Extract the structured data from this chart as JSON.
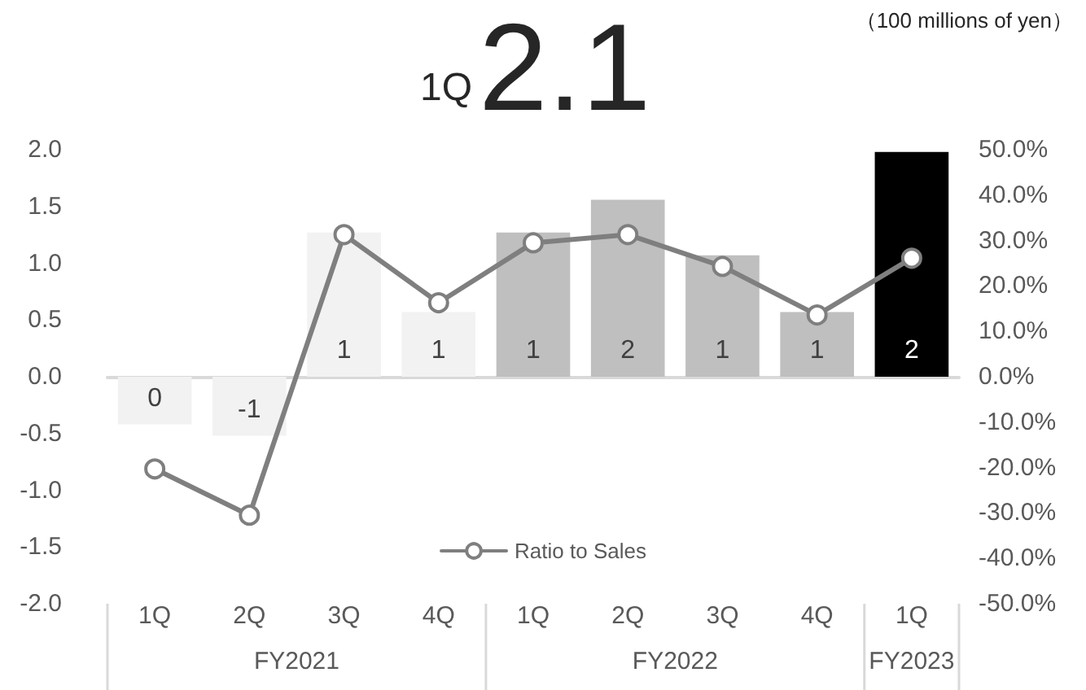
{
  "chart_data": {
    "type": "bar",
    "title": "1Q",
    "subtitle": "2.1",
    "categories": [
      "1Q",
      "2Q",
      "3Q",
      "4Q",
      "1Q",
      "2Q",
      "3Q",
      "4Q",
      "1Q"
    ],
    "series": [
      {
        "colors": [
          "#f2f2f2",
          "#f2f2f2",
          "#f2f2f2",
          "#f2f2f2",
          "#bfbfbf",
          "#bfbfbf",
          "#bfbfbf",
          "#bfbfbf",
          "#000000"
        ],
        "values": [
          -0.42,
          -0.52,
          1.27,
          0.57,
          1.27,
          1.56,
          1.07,
          0.57,
          1.98
        ],
        "value_labels": [
          "0",
          "-1",
          "1",
          "1",
          "1",
          "2",
          "1",
          "1",
          "2"
        ]
      },
      {
        "type": "line",
        "name": "Ratio to Sales",
        "axis": "y2",
        "color": "#7f7f7f",
        "marker": "circle",
        "values": [
          -20.3,
          -30.5,
          31.3,
          16.3,
          29.5,
          31.3,
          24.3,
          13.6,
          26.1
        ]
      }
    ],
    "ylim": [
      -2,
      2
    ],
    "yticks": [
      {
        "value": -2,
        "label": "-2.0"
      },
      {
        "value": -1.5,
        "label": "-1.5"
      },
      {
        "value": -1,
        "label": "-1.0"
      },
      {
        "value": -0.5,
        "label": "-0.5"
      },
      {
        "value": 0,
        "label": "0.0"
      },
      {
        "value": 0.5,
        "label": "0.5"
      },
      {
        "value": 1,
        "label": "1.0"
      },
      {
        "value": 1.5,
        "label": "1.5"
      },
      {
        "value": 2,
        "label": "2.0"
      }
    ],
    "y2lim": [
      -50,
      50
    ],
    "y2ticks": [
      {
        "value": -50,
        "label": "-50.0%"
      },
      {
        "value": -40,
        "label": "-40.0%"
      },
      {
        "value": -30,
        "label": "-30.0%"
      },
      {
        "value": -20,
        "label": "-20.0%"
      },
      {
        "value": -10,
        "label": "-10.0%"
      },
      {
        "value": 0,
        "label": "0.0%"
      },
      {
        "value": 10,
        "label": "10.0%"
      },
      {
        "value": 20,
        "label": "20.0%"
      },
      {
        "value": 30,
        "label": "30.0%"
      },
      {
        "value": 40,
        "label": "40.0%"
      },
      {
        "value": 50,
        "label": "50.0%"
      }
    ],
    "annotations": [
      "（100 millions of yen）",
      "FY2021",
      "FY2022",
      "FY2023"
    ],
    "legend": "bottom"
  }
}
